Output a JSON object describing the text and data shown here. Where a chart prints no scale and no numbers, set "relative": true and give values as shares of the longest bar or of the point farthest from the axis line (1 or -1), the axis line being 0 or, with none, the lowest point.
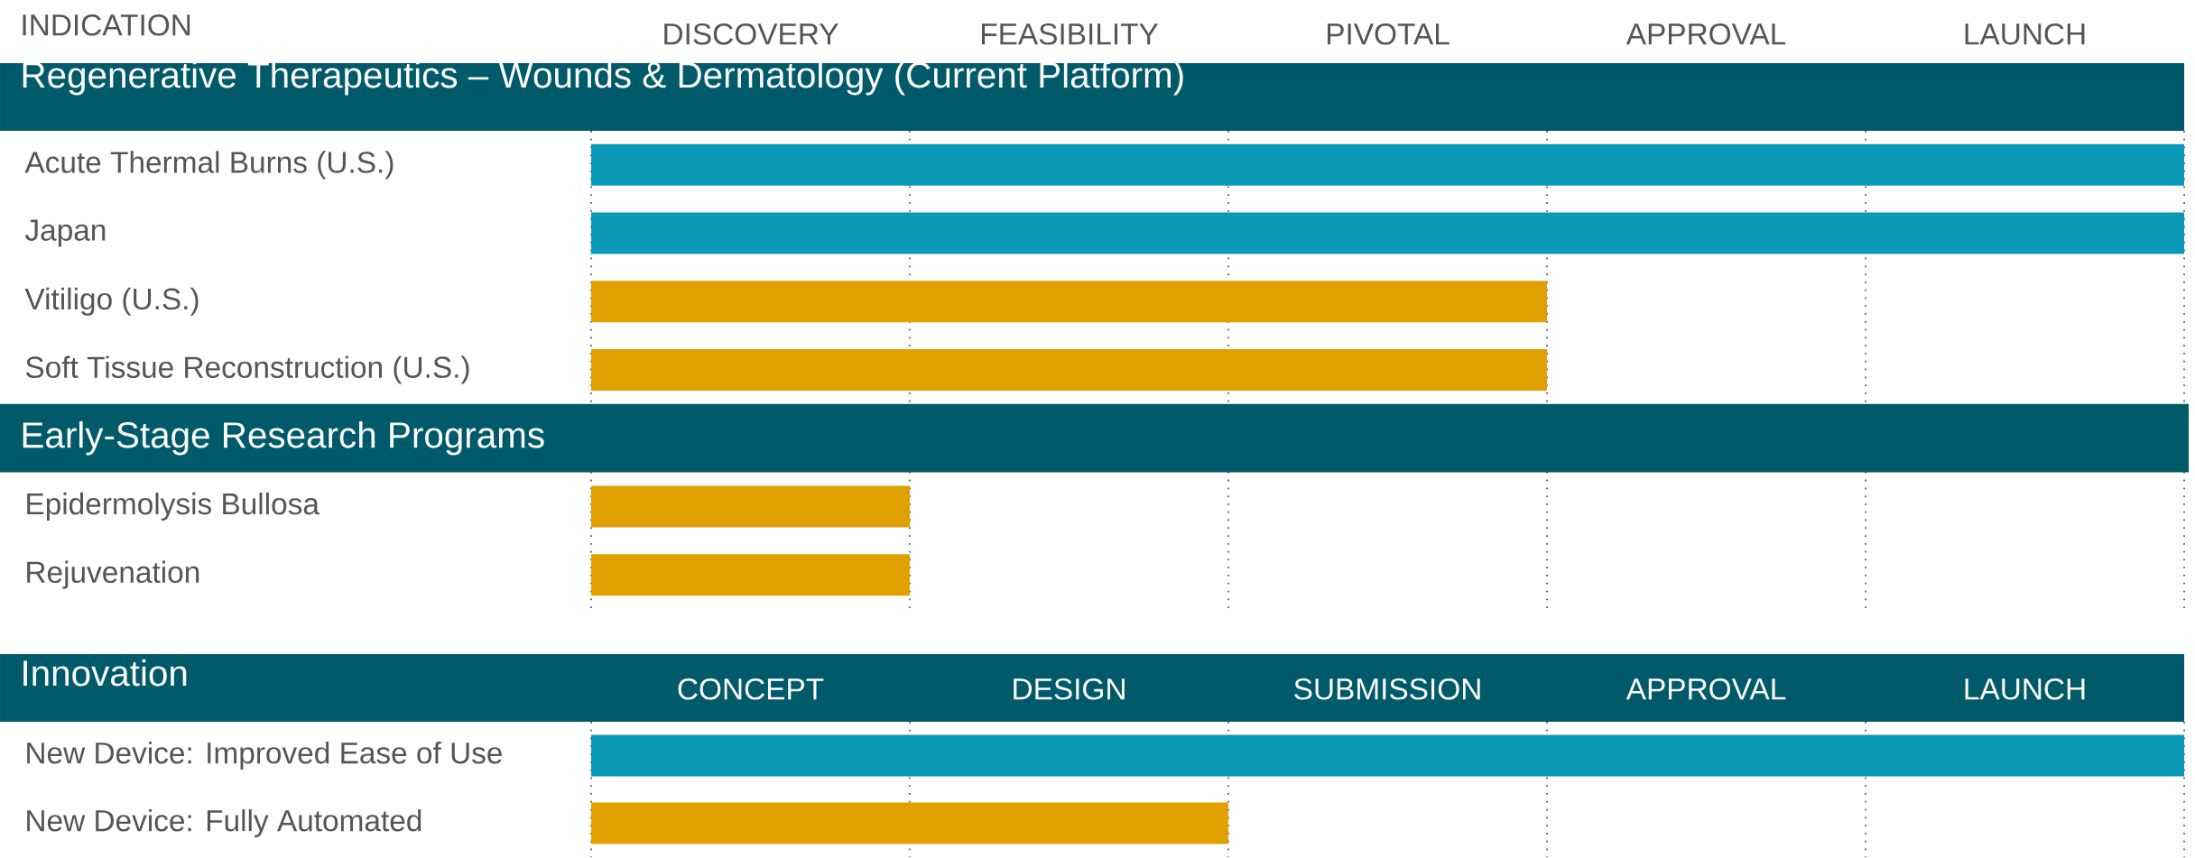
{
  "chart_data": [
    {
      "type": "bar",
      "orientation": "horizontal",
      "relative": true,
      "title": "Regenerative Therapeutics – Wounds & Dermatology (Current Platform)",
      "ylabel": "INDICATION",
      "categories": [
        "Acute Thermal Burns (U.S.)",
        "Japan",
        "Vitiligo (U.S.)",
        "Soft Tissue Reconstruction (U.S.)",
        "Epidermolysis Bullosa",
        "Rejuvenation"
      ],
      "values": [
        1,
        1,
        0.6,
        0.6,
        0.2,
        0.2
      ],
      "colors": [
        "#0a9ab8",
        "#0a9ab8",
        "#e0a000",
        "#e0a000",
        "#e0a000",
        "#e0a000"
      ],
      "annotations": [
        "DISCOVERY",
        "FEASIBILITY",
        "PIVOTAL",
        "APPROVAL",
        "LAUNCH"
      ],
      "bands": [
        {
          "axis": "y",
          "from": "Soft Tissue Reconstruction (U.S.)",
          "to": "Epidermolysis Bullosa",
          "label": "Early-Stage Research Programs",
          "color": "#005a6a"
        }
      ],
      "ref_lines": [
        {
          "axis": "x",
          "value": 0,
          "line_style": "dotted",
          "color": "#555555"
        },
        {
          "axis": "x",
          "value": 0.2,
          "line_style": "dotted",
          "color": "#555555"
        },
        {
          "axis": "x",
          "value": 0.4,
          "line_style": "dotted",
          "color": "#555555"
        },
        {
          "axis": "x",
          "value": 0.6,
          "line_style": "dotted",
          "color": "#555555"
        },
        {
          "axis": "x",
          "value": 0.8,
          "line_style": "dotted",
          "color": "#555555"
        },
        {
          "axis": "x",
          "value": 1,
          "line_style": "dotted",
          "color": "#555555"
        }
      ]
    },
    {
      "type": "bar",
      "orientation": "horizontal",
      "relative": true,
      "title": "Innovation",
      "categories": [
        "New Device: Improved Ease of Use",
        "New Device: Fully Automated"
      ],
      "values": [
        1,
        0.4
      ],
      "colors": [
        "#0a9ab8",
        "#e0a000"
      ],
      "annotations": [
        "CONCEPT",
        "DESIGN",
        "SUBMISSION",
        "APPROVAL",
        "LAUNCH"
      ],
      "ref_lines": [
        {
          "axis": "x",
          "value": 0,
          "line_style": "dotted",
          "color": "#555555"
        },
        {
          "axis": "x",
          "value": 0.2,
          "line_style": "dotted",
          "color": "#555555"
        },
        {
          "axis": "x",
          "value": 0.4,
          "line_style": "dotted",
          "color": "#555555"
        },
        {
          "axis": "x",
          "value": 0.6,
          "line_style": "dotted",
          "color": "#555555"
        },
        {
          "axis": "x",
          "value": 0.8,
          "line_style": "dotted",
          "color": "#555555"
        },
        {
          "axis": "x",
          "value": 1,
          "line_style": "dotted",
          "color": "#555555"
        }
      ]
    }
  ]
}
